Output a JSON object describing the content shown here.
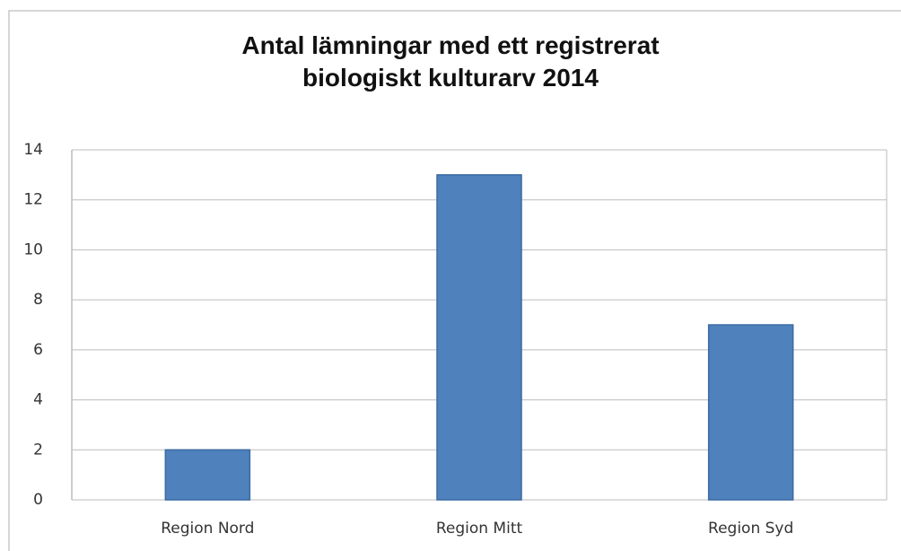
{
  "chart_data": {
    "type": "bar",
    "title": "Antal lämningar med ett registrerat biologiskt kulturarv 2014",
    "categories": [
      "Region Nord",
      "Region Mitt",
      "Region Syd"
    ],
    "values": [
      2,
      13,
      7
    ],
    "color": "#4f81bd",
    "ylim": [
      0,
      14
    ],
    "yticks": [
      0,
      2,
      4,
      6,
      8,
      10,
      12,
      14
    ],
    "grid": true
  }
}
